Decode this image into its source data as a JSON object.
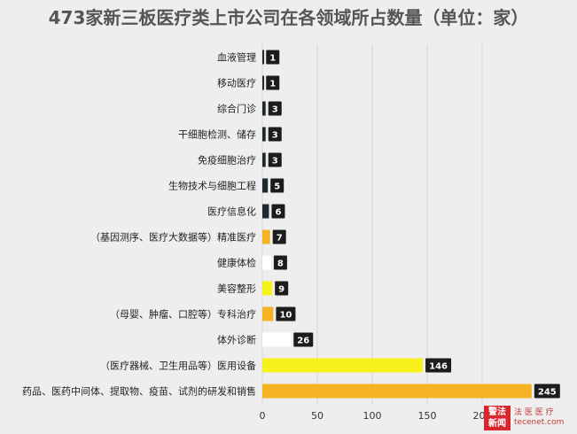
{
  "chart_data": {
    "type": "bar",
    "orientation": "horizontal",
    "title": "473家新三板医疗类上市公司在各领域所占数量（单位：家）",
    "categories": [
      "血液管理",
      "移动医疗",
      "综合门诊",
      "干细胞检测、储存",
      "免疫细胞治疗",
      "生物技术与细胞工程",
      "医疗信息化",
      "（基因测序、医疗大数据等）精准医疗",
      "健康体检",
      "美容整形",
      "（母婴、肿瘤、口腔等）专科治疗",
      "体外诊断",
      "（医疗器械、卫生用品等）医用设备",
      "药品、医药中间体、提取物、疫苗、试剂的研发和销售"
    ],
    "values": [
      1,
      1,
      3,
      3,
      3,
      5,
      6,
      7,
      8,
      9,
      10,
      26,
      146,
      245
    ],
    "bar_colors": [
      "#1f2a2f",
      "#1f2a2f",
      "#1f2a2f",
      "#1f2a2f",
      "#1f2a2f",
      "#1f2a2f",
      "#1f2a2f",
      "#f5b323",
      "#ffffff",
      "#f7f21c",
      "#f5b323",
      "#ffffff",
      "#f7f21c",
      "#f5b323"
    ],
    "xlim": [
      0,
      250
    ],
    "xticks": [
      0,
      50,
      100,
      150,
      200
    ],
    "grid": true,
    "value_label_bg": "#1c1c1c"
  },
  "watermark": {
    "logo_line1": "警法",
    "logo_line2": "新闻",
    "text_line1": "法 医 医 疗",
    "text_line2": "tecenet.com"
  }
}
